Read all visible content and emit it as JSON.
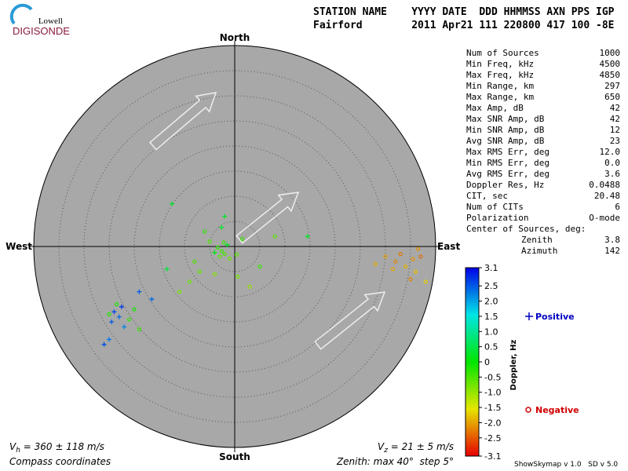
{
  "logo": {
    "top": "Lowell",
    "bottom": "DIGISONDE"
  },
  "header": {
    "line1": "STATION NAME    YYYY DATE  DDD HHMMSS AXN PPS IGP",
    "line2": "Fairford        2011 Apr21 111 220800 417 100 -8E"
  },
  "stats": [
    [
      "Num of Sources",
      "1000"
    ],
    [
      "Min Freq, kHz",
      "4500"
    ],
    [
      "Max Freq, kHz",
      "4850"
    ],
    [
      "Min Range, km",
      "297"
    ],
    [
      "Max Range, km",
      "650"
    ],
    [
      "Max Amp, dB",
      "42"
    ],
    [
      "Max SNR Amp, dB",
      "42"
    ],
    [
      "Min SNR Amp, dB",
      "12"
    ],
    [
      "Avg SNR Amp, dB",
      "23"
    ],
    [
      "Max RMS Err, deg",
      "12.0"
    ],
    [
      "Min RMS Err, deg",
      "0.0"
    ],
    [
      "Avg RMS Err, deg",
      "3.6"
    ],
    [
      "Doppler Res, Hz",
      "0.0488"
    ],
    [
      "CIT, sec",
      "20.48"
    ],
    [
      "Num of CITs",
      "6"
    ],
    [
      "Polarization",
      "O-mode"
    ]
  ],
  "center": {
    "title": "Center of Sources, deg:",
    "rows": [
      [
        "Zenith",
        "3.8"
      ],
      [
        "Azimuth",
        "142"
      ]
    ]
  },
  "skymap": {
    "compass": {
      "north": "North",
      "south": "South",
      "east": "East",
      "west": "West"
    },
    "zenith_label": "Zenith: max",
    "zenith_max": 40,
    "step_label": "step",
    "step": 5,
    "unit": "°",
    "coordinates": "Compass coordinates",
    "vh": {
      "symbol": "V",
      "sub": "h",
      "text": " = 360 ± 118 m/s"
    },
    "vz": {
      "symbol": "V",
      "sub": "z",
      "text": " = 21 ± 5 m/s"
    },
    "points": {
      "x": [
        -2.6,
        -2.0,
        -3.4,
        -1.5,
        -3.0,
        -2.2,
        -4.0,
        -1.0,
        -2.6,
        -2.0,
        -5.0,
        0.4,
        0.6,
        -4.0,
        -7.0,
        -9.0,
        -11.0,
        -13.5,
        -12.5,
        -8.0,
        3.0,
        5.0,
        8.0,
        14.5,
        -6.0,
        1.5,
        -24,
        -23,
        -22.5,
        -24.5,
        -25,
        -26,
        -19,
        -16.5,
        -22,
        -25,
        -21,
        -19,
        -20,
        -23.5,
        30,
        32,
        34,
        35.5,
        33,
        36,
        31.5,
        37,
        28,
        36.5,
        38,
        35
      ],
      "y": [
        -0.9,
        -1.5,
        -0.2,
        0.3,
        -2.0,
        0.8,
        -1.2,
        -2.4,
        3.8,
        6.0,
        1.0,
        -1.6,
        -6.0,
        -5.5,
        -5.0,
        -7.0,
        -9.0,
        -4.5,
        8.5,
        -3.0,
        -8.0,
        -4.0,
        2.0,
        2.0,
        3.0,
        1.5,
        -13,
        -14,
        -12,
        -15,
        -18.5,
        -19.5,
        -9,
        -10.5,
        -16,
        -13.5,
        -14.5,
        -16.5,
        -12.5,
        -11.5,
        -2,
        -3,
        -4,
        -2.5,
        -1.5,
        -5,
        -4.5,
        -2,
        -3.5,
        -0.5,
        -7,
        -6.5
      ],
      "doppler": [
        -0.4,
        -0.5,
        -0.3,
        0.2,
        -0.6,
        -0.4,
        0.1,
        -0.7,
        0.3,
        0.2,
        -0.5,
        -0.6,
        -0.8,
        -0.9,
        -0.6,
        -0.7,
        -0.8,
        0.4,
        0.3,
        -0.5,
        -1.0,
        -0.4,
        -0.6,
        0.2,
        -0.3,
        -0.4,
        2.6,
        2.4,
        2.7,
        2.5,
        2.3,
        2.6,
        2.5,
        2.4,
        2.2,
        -0.2,
        -0.3,
        -0.4,
        -0.1,
        -0.2,
        -2.0,
        -2.2,
        -1.9,
        -2.1,
        -2.3,
        -1.8,
        -2.0,
        -2.4,
        -1.9,
        -2.1,
        -1.7,
        -2.2
      ]
    }
  },
  "colorbar": {
    "label": "Doppler, Hz",
    "lim": [
      -3.1,
      3.1
    ],
    "ticks": [
      3.1,
      2.5,
      {
        "value": 2,
        "label": "2.0"
      },
      1.5,
      {
        "value": 1,
        "label": "1.0"
      },
      0.5,
      0,
      -0.5,
      {
        "value": -1,
        "label": "-1.0"
      },
      -1.5,
      {
        "value": -2,
        "label": "-2.0"
      },
      -2.5,
      -3.1
    ]
  },
  "legend": {
    "positive": "Positive",
    "negative": "Negative"
  },
  "footer": "ShowSkymap v 1.0   SD v 5.0"
}
